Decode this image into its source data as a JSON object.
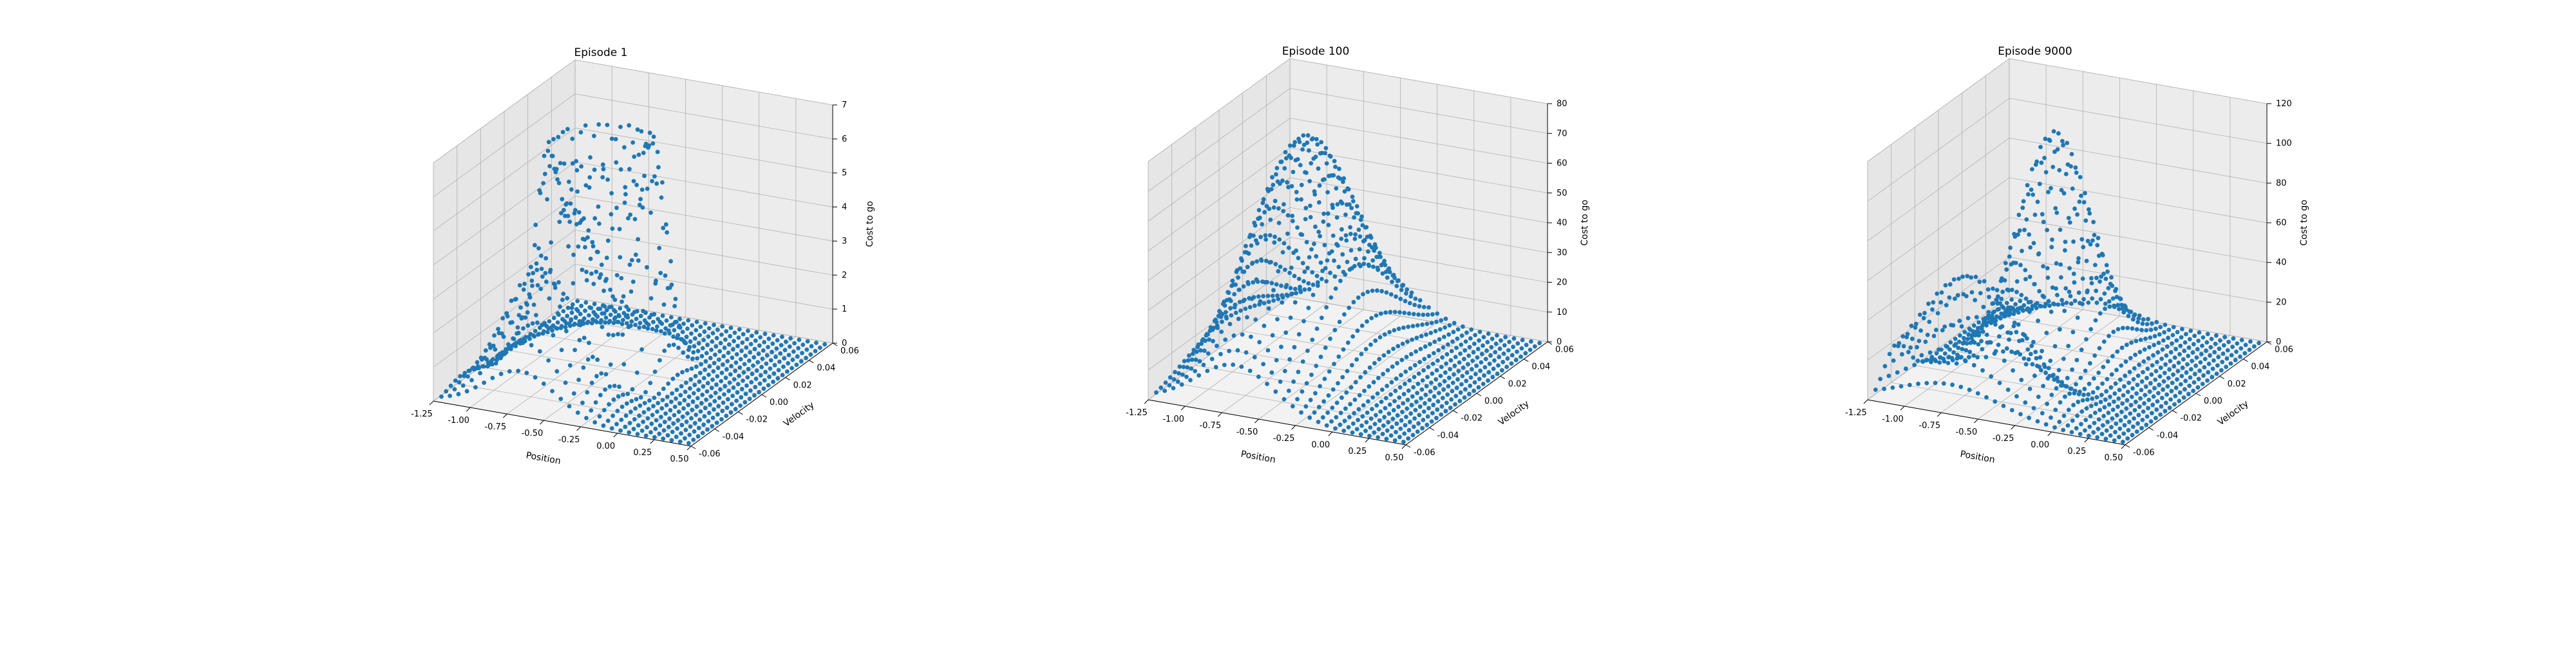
{
  "figure": {
    "background": "#ffffff",
    "marker_color": "#1f77b4"
  },
  "chart_data": [
    {
      "type": "scatter",
      "subtype": "scatter3d",
      "title": "Episode 1",
      "xlabel": "Position",
      "ylabel": "Velocity",
      "zlabel": "Cost to go",
      "xlim": [
        -1.2,
        0.5
      ],
      "ylim": [
        -0.07,
        0.07
      ],
      "zlim": [
        0,
        7
      ],
      "xticks": [
        "-1.25",
        "-1.00",
        "-0.75",
        "-0.50",
        "-0.25",
        "0.00",
        "0.25",
        "0.50"
      ],
      "yticks": [
        "-0.06",
        "-0.04",
        "-0.02",
        "0.00",
        "0.02",
        "0.04",
        "0.06"
      ],
      "zticks": [
        "0",
        "1",
        "2",
        "3",
        "4",
        "5",
        "6",
        "7"
      ],
      "grid": true,
      "surface": "ring",
      "peak": 7,
      "series": [
        {
          "color": "#1f77b4",
          "grid_points": "30x30 tile-coded state grid"
        }
      ]
    },
    {
      "type": "scatter",
      "subtype": "scatter3d",
      "title": "Episode 100",
      "xlabel": "Position",
      "ylabel": "Velocity",
      "zlabel": "Cost to go",
      "xlim": [
        -1.2,
        0.5
      ],
      "ylim": [
        -0.07,
        0.07
      ],
      "zlim": [
        0,
        80
      ],
      "xticks": [
        "-1.25",
        "-1.00",
        "-0.75",
        "-0.50",
        "-0.25",
        "0.00",
        "0.25",
        "0.50"
      ],
      "yticks": [
        "-0.06",
        "-0.04",
        "-0.02",
        "0.00",
        "0.02",
        "0.04",
        "0.06"
      ],
      "zticks": [
        "0",
        "10",
        "20",
        "30",
        "40",
        "50",
        "60",
        "70",
        "80"
      ],
      "grid": true,
      "surface": "hill",
      "peak": 76,
      "series": [
        {
          "color": "#1f77b4",
          "grid_points": "30x30 tile-coded state grid"
        }
      ]
    },
    {
      "type": "scatter",
      "subtype": "scatter3d",
      "title": "Episode 9000",
      "xlabel": "Position",
      "ylabel": "Velocity",
      "zlabel": "Cost to go",
      "xlim": [
        -1.2,
        0.5
      ],
      "ylim": [
        -0.07,
        0.07
      ],
      "zlim": [
        0,
        120
      ],
      "xticks": [
        "-1.25",
        "-1.00",
        "-0.75",
        "-0.50",
        "-0.25",
        "0.00",
        "0.25",
        "0.50"
      ],
      "yticks": [
        "-0.06",
        "-0.04",
        "-0.02",
        "0.00",
        "0.02",
        "0.04",
        "0.06"
      ],
      "zticks": [
        "0",
        "20",
        "40",
        "60",
        "80",
        "100",
        "120"
      ],
      "grid": true,
      "surface": "spiral",
      "peak": 112,
      "series": [
        {
          "color": "#1f77b4",
          "grid_points": "30x30 tile-coded state grid"
        }
      ]
    }
  ]
}
